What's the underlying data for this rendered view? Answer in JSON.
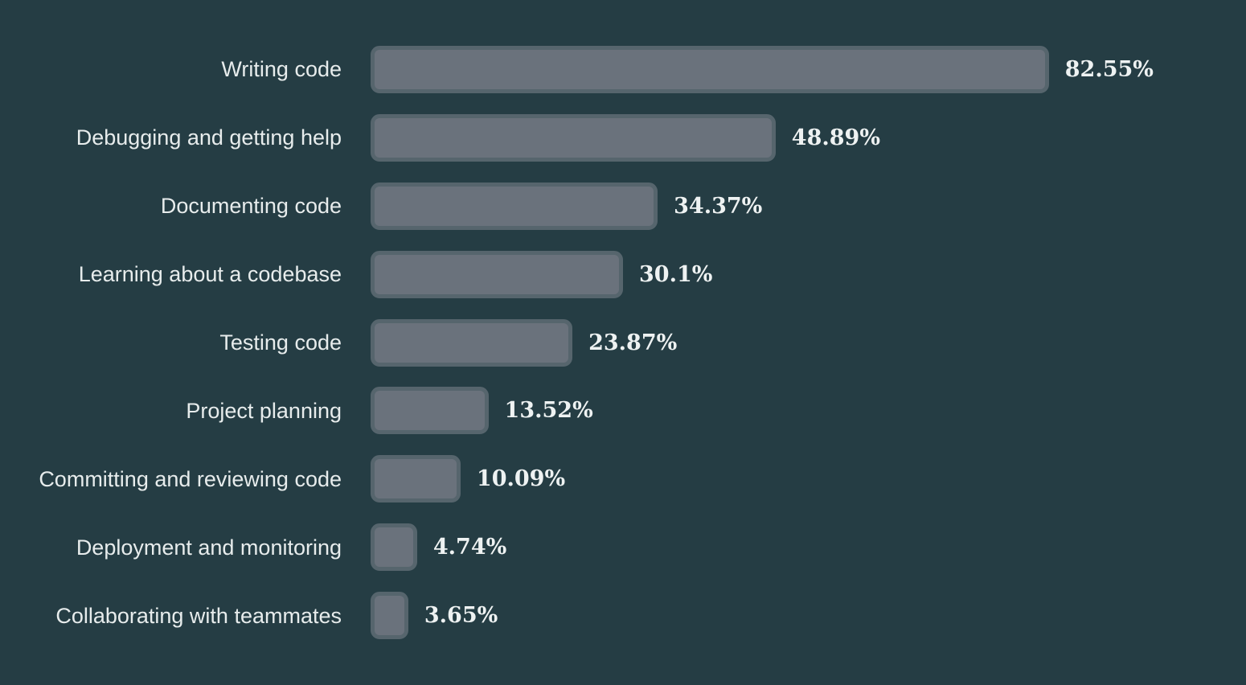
{
  "chart_data": {
    "type": "bar",
    "orientation": "horizontal",
    "title": "",
    "xlabel": "",
    "ylabel": "",
    "xlim": [
      0,
      100
    ],
    "grid": false,
    "legend": false,
    "categories": [
      "Writing code",
      "Debugging and getting help",
      "Documenting code",
      "Learning about a codebase",
      "Testing code",
      "Project planning",
      "Committing and reviewing code",
      "Deployment and monitoring",
      "Collaborating with teammates"
    ],
    "values": [
      82.55,
      48.89,
      34.37,
      30.1,
      23.87,
      13.52,
      10.09,
      4.74,
      3.65
    ],
    "value_labels": [
      "82.55%",
      "48.89%",
      "34.37%",
      "30.1%",
      "23.87%",
      "13.52%",
      "10.09%",
      "4.74%",
      "3.65%"
    ],
    "colors": {
      "background": "#253d44",
      "bar_fill": "#6a727c",
      "bar_border": "#56656d",
      "category_label": "#e7ecec",
      "value_label": "#eef2f2"
    }
  }
}
